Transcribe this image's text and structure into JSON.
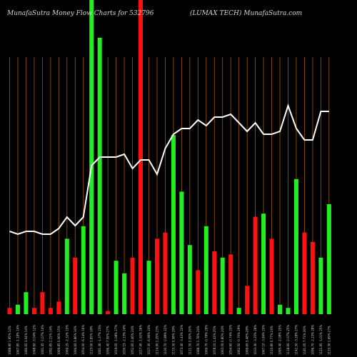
{
  "header": {
    "left": "MunafaSutra  Money Flow  Charts for 532796",
    "right": "(LUMAX   TECH) MunafaSutra.com"
  },
  "chart_data": {
    "type": "bar",
    "title": "MunafaSutra  Money Flow  Charts for 532796",
    "subtitle": "(LUMAX   TECH) MunafaSutra.com",
    "colors": {
      "up": "#22ee22",
      "down": "#ff1010",
      "line": "#ffffff",
      "grid": "#a05a00",
      "background": "#000000"
    },
    "ylim": [
      0,
      100
    ],
    "grid": true,
    "categories": [
      "1088.80 1.95% 12%",
      "1067.80 -1.18% 14%",
      "1080.65 3.04% 14%",
      "1048.60 -3.04% 12%",
      "1081.45 -1.07% 14%",
      "1092.85 2.15% 14%",
      "1069.85 0.06% 15%",
      "1069.25 -2.32% 15%",
      "1094.60 3.86% 16%",
      "1054.00 -6.14% 16%",
      "1123.00 3.85% 18%",
      "1081.40 -1.37% 23%",
      "1096.40 7.59% 27%",
      "1019.05 -1.08% 27%",
      "1030.15 -2.13% 24%",
      "1052.60 3.46% 24%",
      "1017.40 -1.92% 26%",
      "1037.30 -6.96% 24%",
      "1114.90 1.29% 23%",
      "1100.70 -2.88% 22%",
      "1133.30 5.58% 28%",
      "1073.40 -3.43% 22%",
      "1111.50 2.09% 26%",
      "1088.70 1.78% 24%",
      "1069.70 -0.78% 29%",
      "1078.10 1.43% 25%",
      "1063.00 0.80% 24%",
      "1054.60 -0.74% 25%",
      "1062.50 -0.70% 29%",
      "1069.60 3.48% 28%",
      "1033.40 -3.20% 28%",
      "1067.10 -3.84% 25%",
      "1103.80 0.77% 24%",
      "1095.40 -2.08% 25%",
      "1118.60 -2.07% 25%",
      "1142.30 -3.28% 27%",
      "1181.05 7.71% 26%",
      "1096.70 -2.23% 28%",
      "1121.85 -1.01% 25%",
      "1133.30 1.69% 27%"
    ],
    "volume": [
      2,
      3,
      7,
      2,
      7,
      2,
      4,
      24,
      18,
      28,
      100,
      88,
      1,
      17,
      13,
      18,
      100,
      17,
      24,
      26,
      57,
      39,
      22,
      14,
      28,
      20,
      18,
      19,
      2,
      9,
      31,
      32,
      24,
      3,
      2,
      43,
      26,
      23,
      18,
      35
    ],
    "direction": [
      "down",
      "up",
      "up",
      "down",
      "down",
      "down",
      "down",
      "up",
      "down",
      "up",
      "up",
      "up",
      "down",
      "up",
      "up",
      "down",
      "down",
      "up",
      "down",
      "down",
      "up",
      "up",
      "up",
      "down",
      "up",
      "down",
      "up",
      "down",
      "up",
      "down",
      "down",
      "up",
      "down",
      "up",
      "up",
      "up",
      "down",
      "down",
      "up",
      "up"
    ],
    "money_flow_line": [
      29,
      28,
      29,
      29,
      28,
      28,
      30,
      34,
      31,
      34,
      52,
      55,
      55,
      55,
      56,
      51,
      54,
      54,
      49,
      58,
      63,
      65,
      65,
      68,
      66,
      69,
      69,
      70,
      67,
      64,
      67,
      63,
      63,
      64,
      73,
      65,
      61,
      61,
      71,
      71
    ]
  }
}
